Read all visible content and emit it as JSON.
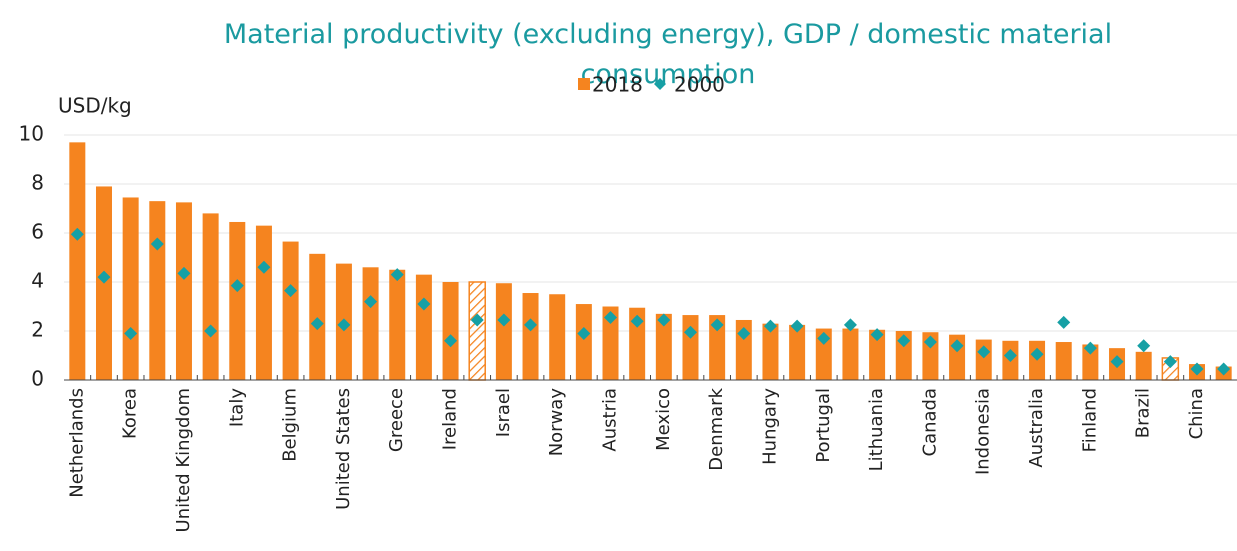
{
  "chart_data": {
    "type": "bar",
    "title": "Material productivity (excluding energy), GDP / domestic material consumption",
    "y_axis_label": "USD/kg",
    "categories": [
      "Netherlands",
      null,
      "Korea",
      null,
      "United Kingdom",
      null,
      "Italy",
      null,
      "Belgium",
      null,
      "United States",
      null,
      "Greece",
      null,
      "Ireland",
      null,
      "Israel",
      null,
      "Norway",
      null,
      "Austria",
      null,
      "Mexico",
      null,
      "Denmark",
      null,
      "Hungary",
      null,
      "Portugal",
      null,
      "Lithuania",
      null,
      "Canada",
      null,
      "Indonesia",
      null,
      "Australia",
      null,
      "Finland",
      null,
      "Brazil",
      null,
      "China",
      null
    ],
    "series": [
      {
        "name": "2018",
        "type": "bar",
        "color": "#f5841f",
        "values": [
          9.7,
          7.9,
          7.45,
          7.3,
          7.25,
          6.8,
          6.45,
          6.3,
          5.65,
          5.15,
          4.75,
          4.6,
          4.5,
          4.3,
          4.0,
          4.0,
          3.95,
          3.55,
          3.5,
          3.1,
          3.0,
          2.95,
          2.7,
          2.65,
          2.65,
          2.45,
          2.3,
          2.25,
          2.1,
          2.1,
          2.05,
          2.0,
          1.95,
          1.85,
          1.65,
          1.6,
          1.6,
          1.55,
          1.45,
          1.3,
          1.15,
          0.9,
          0.65,
          0.55
        ]
      },
      {
        "name": "2000",
        "type": "scatter",
        "color": "#16a0a5",
        "values": [
          5.95,
          4.2,
          1.9,
          5.55,
          4.35,
          2.0,
          3.85,
          4.6,
          3.65,
          2.3,
          2.25,
          3.2,
          4.3,
          3.1,
          1.6,
          2.45,
          2.45,
          2.25,
          null,
          1.9,
          2.55,
          2.4,
          2.45,
          1.95,
          2.25,
          1.9,
          2.2,
          2.2,
          1.7,
          2.25,
          1.85,
          1.6,
          1.55,
          1.4,
          1.15,
          1.0,
          1.05,
          2.35,
          1.3,
          0.75,
          1.4,
          0.75,
          0.45,
          0.45
        ]
      }
    ],
    "hatched": [
      15,
      41
    ],
    "ylim": [
      0,
      10
    ],
    "yticks": [
      0,
      2,
      4,
      6,
      8,
      10
    ],
    "grid": true
  }
}
